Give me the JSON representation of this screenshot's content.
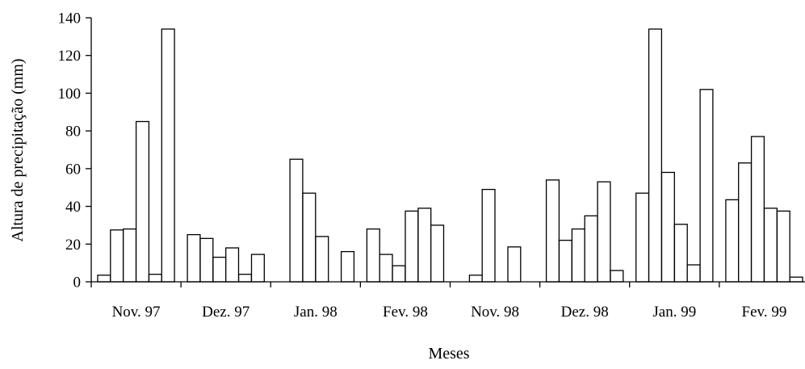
{
  "chart_data": {
    "type": "bar",
    "xlabel": "Meses",
    "ylabel": "Altura de precipitação (mm)",
    "ylim": [
      0,
      140
    ],
    "yticks": [
      0,
      20,
      40,
      60,
      80,
      100,
      120,
      140
    ],
    "grid": false,
    "legend": "none",
    "bar_fill": "#ffffff",
    "bar_stroke": "#000000",
    "groups": [
      {
        "label": "Nov. 97",
        "values": [
          3.5,
          27.5,
          28,
          85,
          4,
          134
        ]
      },
      {
        "label": "Dez. 97",
        "values": [
          25,
          23,
          13,
          18,
          4,
          14.5
        ]
      },
      {
        "label": "Jan. 98",
        "values": [
          0,
          65,
          47,
          24,
          0,
          16
        ]
      },
      {
        "label": "Fev. 98",
        "values": [
          28,
          14.5,
          8.5,
          37.5,
          39,
          30
        ]
      },
      {
        "label": "Nov. 98",
        "values": [
          0,
          3.5,
          49,
          0,
          18.5,
          0
        ]
      },
      {
        "label": "Dez. 98",
        "values": [
          54,
          22,
          28,
          35,
          53,
          6
        ]
      },
      {
        "label": "Jan. 99",
        "values": [
          47,
          134,
          58,
          30.5,
          9,
          102
        ]
      },
      {
        "label": "Fev. 99",
        "values": [
          43.5,
          63,
          77,
          39,
          37.5,
          2.5
        ]
      }
    ]
  }
}
